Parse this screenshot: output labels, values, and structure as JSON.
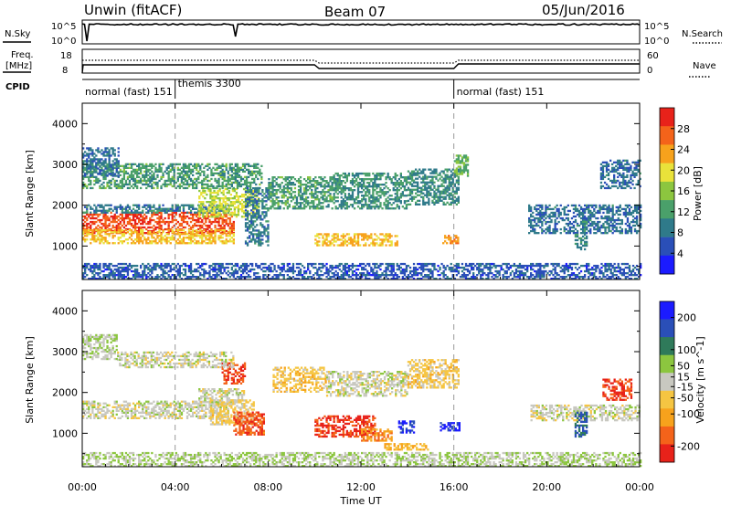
{
  "header": {
    "station": "Unwin (fitACF)",
    "beam": "Beam 07",
    "date": "05/Jun/2016"
  },
  "strip_labels": {
    "nsky": "N.Sky",
    "nsky_top": "10^5",
    "nsky_bot": "10^0",
    "freq": "Freq.",
    "freq_unit": "[MHz]",
    "freq_top": "18",
    "freq_bot": "8",
    "cpid": "CPID",
    "nsearch": "N.Search",
    "nave": "Nave",
    "nave_top": "60",
    "nave_bot": "0"
  },
  "cpid_segments": [
    {
      "start_hour": 0,
      "label": "normal (fast) 151"
    },
    {
      "start_hour": 4,
      "label": "themis 3300"
    },
    {
      "start_hour": 16,
      "label": "normal (fast) 151"
    }
  ],
  "chart_data": [
    {
      "type": "heatmap",
      "panel": "power",
      "ylabel": "Slant Range [km]",
      "xlabel": "",
      "xlim": [
        0,
        24
      ],
      "ylim": [
        180,
        4500
      ],
      "yticks": [
        "1000",
        "2000",
        "3000",
        "4000"
      ],
      "ytick_values": [
        1000,
        2000,
        3000,
        4000
      ],
      "colorbar": {
        "label": "Power [dB]",
        "ticks": [
          "4",
          "8",
          "12",
          "16",
          "20",
          "24",
          "28"
        ],
        "tick_values": [
          4,
          8,
          12,
          16,
          20,
          24,
          28
        ],
        "range": [
          0,
          32
        ],
        "colors": [
          "#1b1bff",
          "#2a4fb8",
          "#2f7a8a",
          "#4aa06a",
          "#8cc63f",
          "#e9e23a",
          "#f7a21c",
          "#f4631a",
          "#e8221a"
        ]
      },
      "regions": [
        {
          "h0": 0.0,
          "h1": 6.5,
          "r0": 1300,
          "r1": 1800,
          "v": 28
        },
        {
          "h0": 0.0,
          "h1": 6.5,
          "r0": 1050,
          "r1": 1400,
          "v": 22
        },
        {
          "h0": 0.0,
          "h1": 6.3,
          "r0": 1800,
          "r1": 2000,
          "v": 9
        },
        {
          "h0": 5.0,
          "h1": 7.6,
          "r0": 1700,
          "r1": 2400,
          "v": 18
        },
        {
          "h0": 0.0,
          "h1": 7.7,
          "r0": 2400,
          "r1": 3000,
          "v": 12
        },
        {
          "h0": 0.0,
          "h1": 1.6,
          "r0": 2700,
          "r1": 3400,
          "v": 8
        },
        {
          "h0": 7.0,
          "h1": 8.0,
          "r0": 1000,
          "r1": 2400,
          "v": 9
        },
        {
          "h0": 8.0,
          "h1": 10.8,
          "r0": 1900,
          "r1": 2700,
          "v": 12
        },
        {
          "h0": 10.8,
          "h1": 14.0,
          "r0": 1900,
          "r1": 2800,
          "v": 11
        },
        {
          "h0": 14.0,
          "h1": 16.2,
          "r0": 2000,
          "r1": 2900,
          "v": 10
        },
        {
          "h0": 10.0,
          "h1": 13.6,
          "r0": 1000,
          "r1": 1300,
          "v": 22
        },
        {
          "h0": 15.5,
          "h1": 16.2,
          "r0": 1050,
          "r1": 1250,
          "v": 24
        },
        {
          "h0": 16.0,
          "h1": 16.6,
          "r0": 2700,
          "r1": 3200,
          "v": 14
        },
        {
          "h0": 19.2,
          "h1": 24.0,
          "r0": 1300,
          "r1": 2000,
          "v": 8
        },
        {
          "h0": 21.2,
          "h1": 21.7,
          "r0": 900,
          "r1": 1600,
          "v": 10
        },
        {
          "h0": 22.3,
          "h1": 24.0,
          "r0": 2400,
          "r1": 3100,
          "v": 8
        },
        {
          "h0": 0.0,
          "h1": 24.0,
          "r0": 180,
          "r1": 550,
          "v": 6
        }
      ]
    },
    {
      "type": "heatmap",
      "panel": "velocity",
      "ylabel": "Slant Range [km]",
      "xlabel": "Time UT",
      "xlim": [
        0,
        24
      ],
      "ylim": [
        180,
        4500
      ],
      "xticks": [
        "00:00",
        "04:00",
        "08:00",
        "12:00",
        "16:00",
        "20:00",
        "00:00"
      ],
      "xtick_values": [
        0,
        4,
        8,
        12,
        16,
        20,
        24
      ],
      "yticks": [
        "1000",
        "2000",
        "3000",
        "4000"
      ],
      "ytick_values": [
        1000,
        2000,
        3000,
        4000
      ],
      "colorbar": {
        "label": "Velocity [m s^-1]",
        "ticks": [
          "200",
          "100",
          "50",
          "15",
          "-15",
          "-50",
          "-100",
          "-200"
        ],
        "tick_values": [
          200,
          100,
          50,
          15,
          -15,
          -50,
          -100,
          -200
        ],
        "range": [
          -250,
          250
        ],
        "colors": [
          "#e8221a",
          "#f4631a",
          "#f7a21c",
          "#f5c542",
          "#c8c8c0",
          "#8cc63f",
          "#2f7a5a",
          "#2a4fb8",
          "#1b1bff"
        ]
      },
      "regions": [
        {
          "h0": 0.0,
          "h1": 6.3,
          "r0": 1350,
          "r1": 1800,
          "v": 0
        },
        {
          "h0": 5.0,
          "h1": 7.0,
          "r0": 1700,
          "r1": 2100,
          "v": 0
        },
        {
          "h0": 5.5,
          "h1": 7.4,
          "r0": 1200,
          "r1": 1800,
          "v": -40
        },
        {
          "h0": 6.5,
          "h1": 7.8,
          "r0": 950,
          "r1": 1500,
          "v": -180
        },
        {
          "h0": 6.0,
          "h1": 7.0,
          "r0": 2200,
          "r1": 2700,
          "v": -200
        },
        {
          "h0": 1.5,
          "h1": 6.5,
          "r0": 2600,
          "r1": 3000,
          "v": 0
        },
        {
          "h0": 0.0,
          "h1": 1.5,
          "r0": 2800,
          "r1": 3400,
          "v": 25
        },
        {
          "h0": 8.2,
          "h1": 10.5,
          "r0": 2000,
          "r1": 2600,
          "v": -60
        },
        {
          "h0": 10.5,
          "h1": 14.0,
          "r0": 1900,
          "r1": 2500,
          "v": 0
        },
        {
          "h0": 14.0,
          "h1": 16.2,
          "r0": 2100,
          "r1": 2800,
          "v": -50
        },
        {
          "h0": 10.0,
          "h1": 12.6,
          "r0": 900,
          "r1": 1400,
          "v": -200
        },
        {
          "h0": 12.0,
          "h1": 13.3,
          "r0": 800,
          "r1": 1100,
          "v": -120
        },
        {
          "h0": 13.6,
          "h1": 14.3,
          "r0": 1000,
          "r1": 1300,
          "v": 200
        },
        {
          "h0": 15.4,
          "h1": 16.2,
          "r0": 1050,
          "r1": 1250,
          "v": 200
        },
        {
          "h0": 13.0,
          "h1": 15.0,
          "r0": 580,
          "r1": 720,
          "v": -90
        },
        {
          "h0": 19.3,
          "h1": 24.0,
          "r0": 1300,
          "r1": 1700,
          "v": 0
        },
        {
          "h0": 21.2,
          "h1": 21.7,
          "r0": 900,
          "r1": 1500,
          "v": 150
        },
        {
          "h0": 22.4,
          "h1": 23.6,
          "r0": 1800,
          "r1": 2300,
          "v": -200
        },
        {
          "h0": 0.0,
          "h1": 24.0,
          "r0": 180,
          "r1": 500,
          "v": 25
        }
      ]
    }
  ]
}
